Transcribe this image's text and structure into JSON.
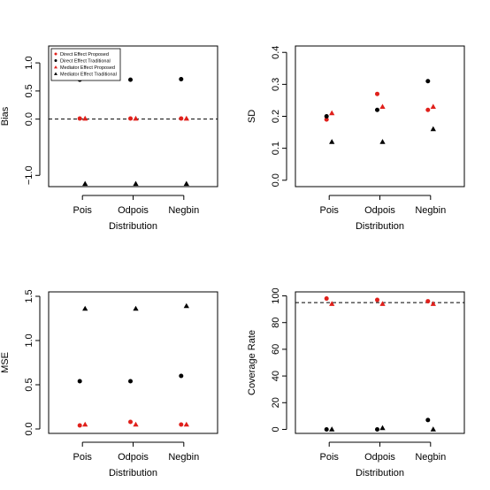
{
  "colors": {
    "proposed": "#e0201b",
    "traditional": "#000000",
    "reference": "#000000"
  },
  "legend": {
    "entries": [
      {
        "label": "Direct Effect Proposed",
        "color": "#e0201b",
        "marker": "circle"
      },
      {
        "label": "Direct Effect Traditional",
        "color": "#000000",
        "marker": "circle"
      },
      {
        "label": "Mediator Effect Proposed",
        "color": "#e0201b",
        "marker": "triangle"
      },
      {
        "label": "Mediator Effect Traditional",
        "color": "#000000",
        "marker": "triangle"
      }
    ]
  },
  "chart_data": [
    {
      "type": "scatter",
      "panel": "top-left",
      "xlabel": "Distribution",
      "ylabel": "Bias",
      "categories": [
        "Pois",
        "Odpois",
        "Negbin"
      ],
      "ylim": [
        -1.2,
        1.3
      ],
      "yticks": [
        {
          "v": -1.0,
          "t": "−1.0"
        },
        {
          "v": 0.0,
          "t": "0.0"
        },
        {
          "v": 0.5,
          "t": "0.5"
        },
        {
          "v": 1.0,
          "t": "1.0"
        }
      ],
      "reference_line": 0,
      "legend_position": "top-left",
      "series": [
        {
          "name": "Direct Effect Proposed",
          "color": "#e0201b",
          "marker": "circle",
          "values": [
            0.01,
            0.01,
            0.01
          ]
        },
        {
          "name": "Direct Effect Traditional",
          "color": "#000000",
          "marker": "circle",
          "values": [
            0.7,
            0.7,
            0.71
          ]
        },
        {
          "name": "Mediator Effect Proposed",
          "color": "#e0201b",
          "marker": "triangle",
          "values": [
            0.01,
            0.01,
            0.01
          ]
        },
        {
          "name": "Mediator Effect Traditional",
          "color": "#000000",
          "marker": "triangle",
          "values": [
            -1.15,
            -1.15,
            -1.15
          ]
        }
      ]
    },
    {
      "type": "scatter",
      "panel": "top-right",
      "xlabel": "Distribution",
      "ylabel": "SD",
      "categories": [
        "Pois",
        "Odpois",
        "Negbin"
      ],
      "ylim": [
        -0.02,
        0.42
      ],
      "yticks": [
        {
          "v": 0.0,
          "t": "0.0"
        },
        {
          "v": 0.1,
          "t": "0.1"
        },
        {
          "v": 0.2,
          "t": "0.2"
        },
        {
          "v": 0.3,
          "t": "0.3"
        },
        {
          "v": 0.4,
          "t": "0.4"
        }
      ],
      "reference_line": null,
      "series": [
        {
          "name": "Direct Effect Proposed",
          "color": "#e0201b",
          "marker": "circle",
          "values": [
            0.19,
            0.27,
            0.22
          ]
        },
        {
          "name": "Direct Effect Traditional",
          "color": "#000000",
          "marker": "circle",
          "values": [
            0.2,
            0.22,
            0.31
          ]
        },
        {
          "name": "Mediator Effect Proposed",
          "color": "#e0201b",
          "marker": "triangle",
          "values": [
            0.21,
            0.23,
            0.23
          ]
        },
        {
          "name": "Mediator Effect Traditional",
          "color": "#000000",
          "marker": "triangle",
          "values": [
            0.12,
            0.12,
            0.16
          ]
        }
      ]
    },
    {
      "type": "scatter",
      "panel": "bottom-left",
      "xlabel": "Distribution",
      "ylabel": "MSE",
      "categories": [
        "Pois",
        "Odpois",
        "Negbin"
      ],
      "ylim": [
        -0.05,
        1.55
      ],
      "yticks": [
        {
          "v": 0.0,
          "t": "0.0"
        },
        {
          "v": 0.5,
          "t": "0.5"
        },
        {
          "v": 1.0,
          "t": "1.0"
        },
        {
          "v": 1.5,
          "t": "1.5"
        }
      ],
      "reference_line": null,
      "series": [
        {
          "name": "Direct Effect Proposed",
          "color": "#e0201b",
          "marker": "circle",
          "values": [
            0.04,
            0.08,
            0.05
          ]
        },
        {
          "name": "Direct Effect Traditional",
          "color": "#000000",
          "marker": "circle",
          "values": [
            0.54,
            0.54,
            0.6
          ]
        },
        {
          "name": "Mediator Effect Proposed",
          "color": "#e0201b",
          "marker": "triangle",
          "values": [
            0.05,
            0.05,
            0.05
          ]
        },
        {
          "name": "Mediator Effect Traditional",
          "color": "#000000",
          "marker": "triangle",
          "values": [
            1.36,
            1.36,
            1.39
          ]
        }
      ]
    },
    {
      "type": "scatter",
      "panel": "bottom-right",
      "xlabel": "Distribution",
      "ylabel": "Coverage Rate",
      "categories": [
        "Pois",
        "Odpois",
        "Negbin"
      ],
      "ylim": [
        -3,
        103
      ],
      "yticks": [
        {
          "v": 0,
          "t": "0"
        },
        {
          "v": 20,
          "t": "20"
        },
        {
          "v": 40,
          "t": "40"
        },
        {
          "v": 60,
          "t": "60"
        },
        {
          "v": 80,
          "t": "80"
        },
        {
          "v": 100,
          "t": "100"
        }
      ],
      "reference_line": 95,
      "series": [
        {
          "name": "Direct Effect Proposed",
          "color": "#e0201b",
          "marker": "circle",
          "values": [
            98,
            97,
            96
          ]
        },
        {
          "name": "Direct Effect Traditional",
          "color": "#000000",
          "marker": "circle",
          "values": [
            0,
            0,
            7
          ]
        },
        {
          "name": "Mediator Effect Proposed",
          "color": "#e0201b",
          "marker": "triangle",
          "values": [
            94,
            94,
            94
          ]
        },
        {
          "name": "Mediator Effect Traditional",
          "color": "#000000",
          "marker": "triangle",
          "values": [
            0,
            1,
            0
          ]
        }
      ]
    }
  ]
}
